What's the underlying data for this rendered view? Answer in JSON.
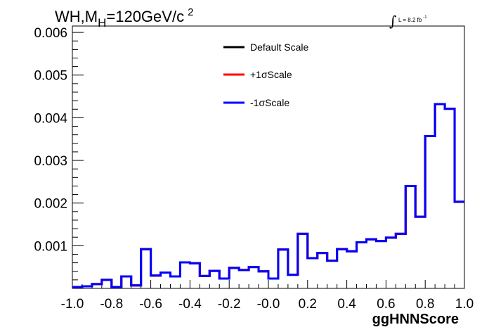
{
  "chart_data": {
    "type": "step-histogram",
    "title": {
      "prefix": "WH,M",
      "subscript": "H",
      "suffix": "=120GeV/c",
      "superscript": "2"
    },
    "lumi": {
      "integral": "∫",
      "text": "L = 8.2 fb",
      "superscript": "-1"
    },
    "xlabel": "ggHNNScore",
    "ylabel": "",
    "xlim": [
      -1.0,
      1.0
    ],
    "ylim": [
      0,
      0.00615
    ],
    "x_ticks": [
      "-1.0",
      "-0.8",
      "-0.6",
      "-0.4",
      "-0.2",
      "-0.0",
      "0.2",
      "0.4",
      "0.6",
      "0.8",
      "1.0"
    ],
    "x_tick_values": [
      -1.0,
      -0.8,
      -0.6,
      -0.4,
      -0.2,
      0.0,
      0.2,
      0.4,
      0.6,
      0.8,
      1.0
    ],
    "y_ticks": [
      "0.001",
      "0.002",
      "0.003",
      "0.004",
      "0.005",
      "0.006"
    ],
    "y_tick_values": [
      0.001,
      0.002,
      0.003,
      0.004,
      0.005,
      0.006
    ],
    "bin_edges": [
      -1.0,
      -0.95,
      -0.9,
      -0.85,
      -0.8,
      -0.75,
      -0.7,
      -0.65,
      -0.6,
      -0.55,
      -0.5,
      -0.45,
      -0.4,
      -0.35,
      -0.3,
      -0.25,
      -0.2,
      -0.15,
      -0.1,
      -0.05,
      0.0,
      0.05,
      0.1,
      0.15,
      0.2,
      0.25,
      0.3,
      0.35,
      0.4,
      0.45,
      0.5,
      0.55,
      0.6,
      0.65,
      0.7,
      0.75,
      0.8,
      0.85,
      0.9,
      0.95,
      1.0
    ],
    "legend_position": "top-center",
    "series": [
      {
        "name": "Default Scale",
        "color": "#000000",
        "values": [
          3e-05,
          5e-05,
          0.0001,
          0.0002,
          3e-05,
          0.00028,
          7e-05,
          0.00092,
          0.0003,
          0.00037,
          0.00028,
          0.00061,
          0.00059,
          0.00029,
          0.00041,
          0.00023,
          0.00048,
          0.00043,
          0.0005,
          0.0004,
          0.00023,
          0.00091,
          0.00032,
          0.00128,
          0.00071,
          0.00083,
          0.00065,
          0.00092,
          0.00087,
          0.00108,
          0.00115,
          0.00111,
          0.00119,
          0.00128,
          0.0024,
          0.00168,
          0.00357,
          0.00432,
          0.00421,
          0.00203
        ]
      },
      {
        "name": "+1σScale",
        "color": "#ff0000",
        "values": [
          3e-05,
          5e-05,
          0.0001,
          0.0002,
          3e-05,
          0.00028,
          7e-05,
          0.00092,
          0.0003,
          0.00037,
          0.00028,
          0.00061,
          0.00059,
          0.00029,
          0.00041,
          0.00023,
          0.00048,
          0.00043,
          0.0005,
          0.0004,
          0.00023,
          0.00091,
          0.00032,
          0.00128,
          0.00071,
          0.00083,
          0.00065,
          0.00092,
          0.00087,
          0.00108,
          0.00115,
          0.00111,
          0.00119,
          0.00128,
          0.0024,
          0.00168,
          0.00357,
          0.00432,
          0.00421,
          0.00203
        ]
      },
      {
        "name": "-1σScale",
        "color": "#0000ff",
        "values": [
          3e-05,
          5e-05,
          0.0001,
          0.0002,
          3e-05,
          0.00028,
          7e-05,
          0.00092,
          0.0003,
          0.00037,
          0.00028,
          0.00061,
          0.00059,
          0.00029,
          0.00041,
          0.00023,
          0.00048,
          0.00043,
          0.0005,
          0.0004,
          0.00023,
          0.00091,
          0.00032,
          0.00128,
          0.00071,
          0.00083,
          0.00065,
          0.00092,
          0.00087,
          0.00108,
          0.00115,
          0.00111,
          0.00119,
          0.00128,
          0.0024,
          0.00168,
          0.00357,
          0.00432,
          0.00421,
          0.00203
        ]
      }
    ]
  }
}
